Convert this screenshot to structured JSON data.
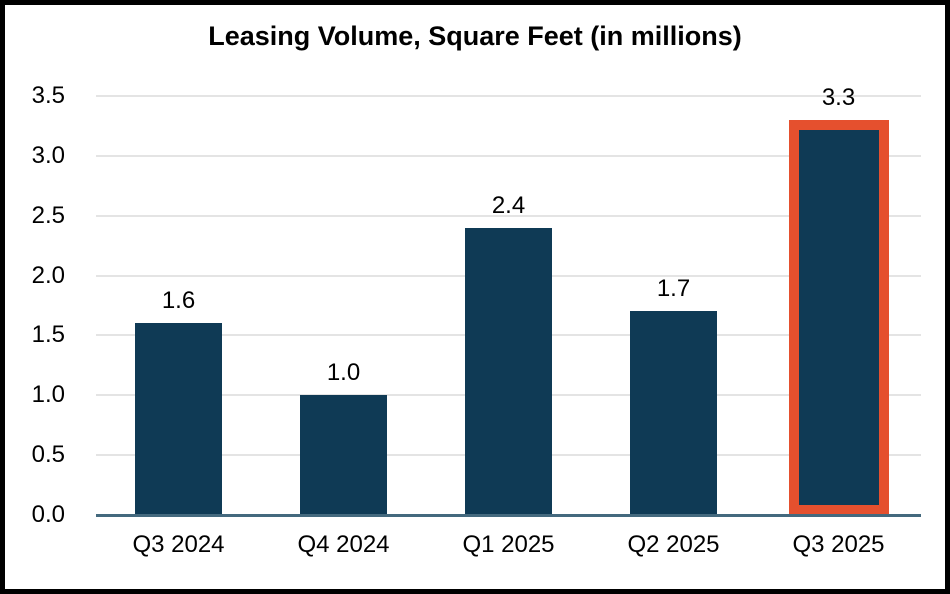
{
  "chart_data": {
    "type": "bar",
    "title": "Leasing Volume, Square Feet (in millions)",
    "categories": [
      "Q3 2024",
      "Q4 2024",
      "Q1 2025",
      "Q2 2025",
      "Q3 2025"
    ],
    "values": [
      1.6,
      1.0,
      2.4,
      1.7,
      3.3
    ],
    "data_labels": [
      "1.6",
      "1.0",
      "2.4",
      "1.7",
      "3.3"
    ],
    "yticks": [
      "0.0",
      "0.5",
      "1.0",
      "1.5",
      "2.0",
      "2.5",
      "3.0",
      "3.5"
    ],
    "ylim": [
      0,
      3.5
    ],
    "xlabel": "",
    "ylabel": "",
    "grid": "horizontal",
    "legend": "none",
    "highlight_index": 4,
    "colors": {
      "bar": "#0F3A55",
      "highlight_border": "#E5502E",
      "gridline": "#E4E4E4",
      "axis_line": "#44697E",
      "text": "#000000",
      "background": "#FFFFFF",
      "figure_border": "#000000"
    }
  }
}
